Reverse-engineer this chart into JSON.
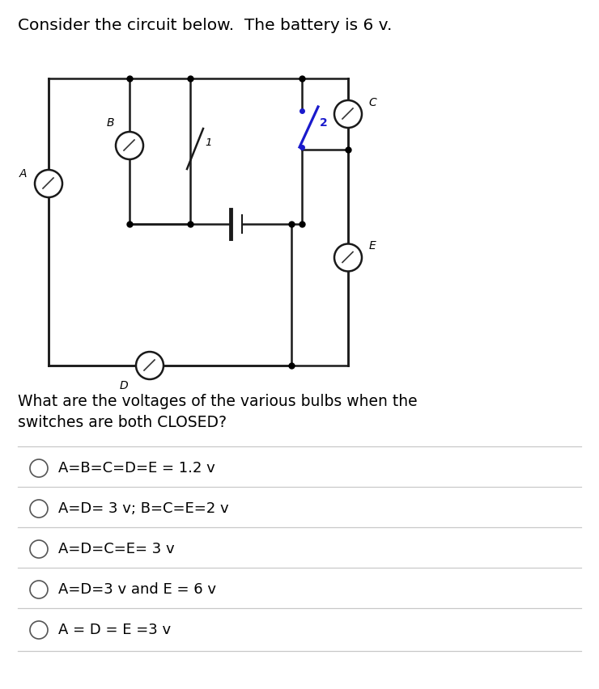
{
  "title": "Consider the circuit below.  The battery is 6 v.",
  "question": "What are the voltages of the various bulbs when the\nswitches are both CLOSED?",
  "options": [
    "A=B=C=D=E = 1.2 v",
    "A=D= 3 v; B=C=E=2 v",
    "A=D=C=E= 3 v",
    "A=D=3 v and E = 6 v",
    "A = D = E =3 v"
  ],
  "bg_color": "#ffffff",
  "text_color": "#000000",
  "line_color": "#1a1a1a",
  "title_fontsize": 14.5,
  "question_fontsize": 13.5,
  "option_fontsize": 13.0
}
